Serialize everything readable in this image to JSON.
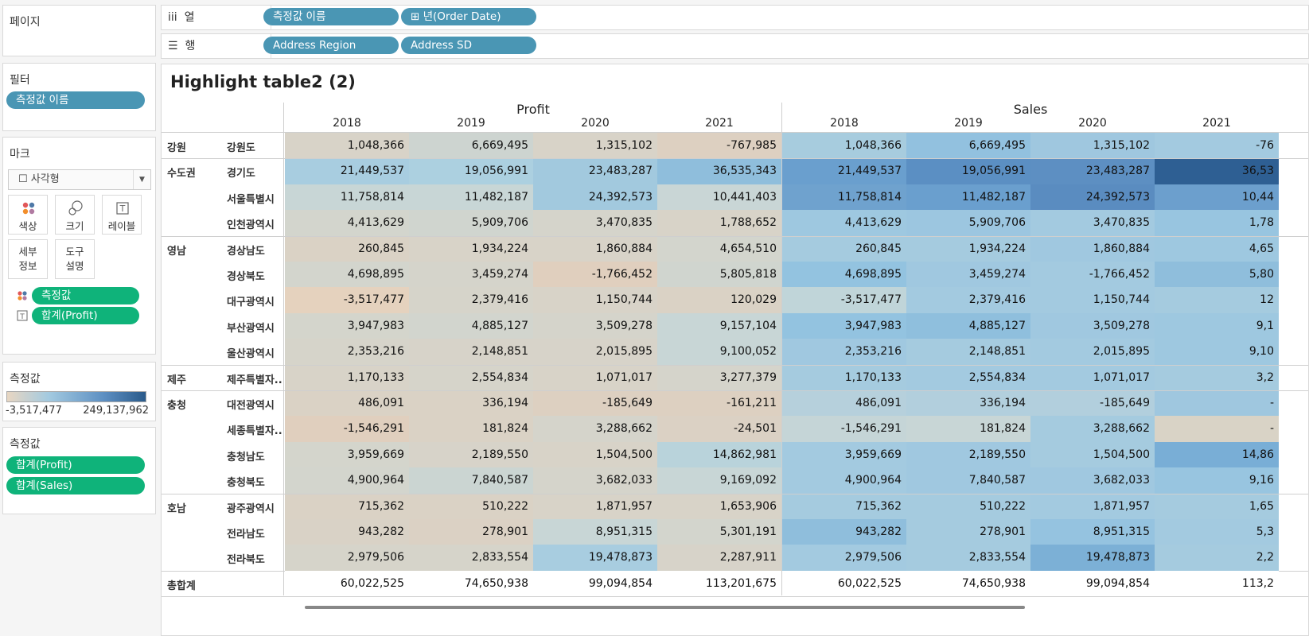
{
  "panels": {
    "pages": "페이지",
    "filters": "필터",
    "marks": "마크",
    "legend_title": "측정값",
    "measures_title": "측정값"
  },
  "filters": {
    "pill": "측정값 이름"
  },
  "marks": {
    "mark_type": "사각형",
    "buttons": {
      "color": "색상",
      "size": "크기",
      "label": "레이블",
      "detail_1": "세부",
      "detail_2": "정보",
      "tooltip_1": "도구",
      "tooltip_2": "설명"
    },
    "pills": {
      "color_pill": "측정값",
      "label_pill": "합계(Profit)"
    }
  },
  "legend": {
    "min": "-3,517,477",
    "max": "249,137,962",
    "color_low": "#e8d6c2",
    "color_high": "#2a5a8a"
  },
  "measures": [
    "합계(Profit)",
    "합계(Sales)"
  ],
  "shelves": {
    "columns": {
      "label": "열",
      "pills": [
        "측정값 이름",
        "년(Order Date)"
      ]
    },
    "rows": {
      "label": "행",
      "pills": [
        "Address Region",
        "Address SD"
      ]
    }
  },
  "view": {
    "title": "Highlight table2 (2)",
    "groups": [
      "Profit",
      "Sales"
    ],
    "years": [
      "2018",
      "2019",
      "2020",
      "2021"
    ],
    "total_label": "총합계",
    "rows": [
      {
        "region": "강원",
        "sd": "강원도",
        "profit": [
          "1,048,366",
          "6,669,495",
          "1,315,102",
          "-767,985"
        ],
        "sales": [
          "1,048,366",
          "6,669,495",
          "1,315,102",
          "-76"
        ]
      },
      {
        "region": "수도권",
        "sd": "경기도",
        "profit": [
          "21,449,537",
          "19,056,991",
          "23,483,287",
          "36,535,343"
        ],
        "sales": [
          "21,449,537",
          "19,056,991",
          "23,483,287",
          "36,53"
        ]
      },
      {
        "region": "",
        "sd": "서울특별시",
        "profit": [
          "11,758,814",
          "11,482,187",
          "24,392,573",
          "10,441,403"
        ],
        "sales": [
          "11,758,814",
          "11,482,187",
          "24,392,573",
          "10,44"
        ]
      },
      {
        "region": "",
        "sd": "인천광역시",
        "profit": [
          "4,413,629",
          "5,909,706",
          "3,470,835",
          "1,788,652"
        ],
        "sales": [
          "4,413,629",
          "5,909,706",
          "3,470,835",
          "1,78"
        ]
      },
      {
        "region": "영남",
        "sd": "경상남도",
        "profit": [
          "260,845",
          "1,934,224",
          "1,860,884",
          "4,654,510"
        ],
        "sales": [
          "260,845",
          "1,934,224",
          "1,860,884",
          "4,65"
        ]
      },
      {
        "region": "",
        "sd": "경상북도",
        "profit": [
          "4,698,895",
          "3,459,274",
          "-1,766,452",
          "5,805,818"
        ],
        "sales": [
          "4,698,895",
          "3,459,274",
          "-1,766,452",
          "5,80"
        ]
      },
      {
        "region": "",
        "sd": "대구광역시",
        "profit": [
          "-3,517,477",
          "2,379,416",
          "1,150,744",
          "120,029"
        ],
        "sales": [
          "-3,517,477",
          "2,379,416",
          "1,150,744",
          "12"
        ]
      },
      {
        "region": "",
        "sd": "부산광역시",
        "profit": [
          "3,947,983",
          "4,885,127",
          "3,509,278",
          "9,157,104"
        ],
        "sales": [
          "3,947,983",
          "4,885,127",
          "3,509,278",
          "9,1"
        ]
      },
      {
        "region": "",
        "sd": "울산광역시",
        "profit": [
          "2,353,216",
          "2,148,851",
          "2,015,895",
          "9,100,052"
        ],
        "sales": [
          "2,353,216",
          "2,148,851",
          "2,015,895",
          "9,10"
        ]
      },
      {
        "region": "제주",
        "sd": "제주특별자..",
        "profit": [
          "1,170,133",
          "2,554,834",
          "1,071,017",
          "3,277,379"
        ],
        "sales": [
          "1,170,133",
          "2,554,834",
          "1,071,017",
          "3,2"
        ]
      },
      {
        "region": "충청",
        "sd": "대전광역시",
        "profit": [
          "486,091",
          "336,194",
          "-185,649",
          "-161,211"
        ],
        "sales": [
          "486,091",
          "336,194",
          "-185,649",
          "-"
        ]
      },
      {
        "region": "",
        "sd": "세종특별자..",
        "profit": [
          "-1,546,291",
          "181,824",
          "3,288,662",
          "-24,501"
        ],
        "sales": [
          "-1,546,291",
          "181,824",
          "3,288,662",
          "-"
        ]
      },
      {
        "region": "",
        "sd": "충청남도",
        "profit": [
          "3,959,669",
          "2,189,550",
          "1,504,500",
          "14,862,981"
        ],
        "sales": [
          "3,959,669",
          "2,189,550",
          "1,504,500",
          "14,86"
        ]
      },
      {
        "region": "",
        "sd": "충청북도",
        "profit": [
          "4,900,964",
          "7,840,587",
          "3,682,033",
          "9,169,092"
        ],
        "sales": [
          "4,900,964",
          "7,840,587",
          "3,682,033",
          "9,16"
        ]
      },
      {
        "region": "호남",
        "sd": "광주광역시",
        "profit": [
          "715,362",
          "510,222",
          "1,871,957",
          "1,653,906"
        ],
        "sales": [
          "715,362",
          "510,222",
          "1,871,957",
          "1,65"
        ]
      },
      {
        "region": "",
        "sd": "전라남도",
        "profit": [
          "943,282",
          "278,901",
          "8,951,315",
          "5,301,191"
        ],
        "sales": [
          "943,282",
          "278,901",
          "8,951,315",
          "5,3"
        ]
      },
      {
        "region": "",
        "sd": "전라북도",
        "profit": [
          "2,979,506",
          "2,833,554",
          "19,478,873",
          "2,287,911"
        ],
        "sales": [
          "2,979,506",
          "2,833,554",
          "19,478,873",
          "2,2"
        ]
      }
    ],
    "totals": {
      "profit": [
        "60,022,525",
        "74,650,938",
        "99,094,854",
        "113,201,675"
      ],
      "sales": [
        "60,022,525",
        "74,650,938",
        "99,094,854",
        "113,2"
      ]
    },
    "profit_colors": [
      [
        "#d8d3c8",
        "#cdd4d0",
        "#d8d3c8",
        "#ddd0c1"
      ],
      [
        "#a8cde0",
        "#acd0e0",
        "#a2c9de",
        "#8fbedc"
      ],
      [
        "#c8d6d6",
        "#c8d6d6",
        "#a2c9de",
        "#c9d6d6"
      ],
      [
        "#d3d5cd",
        "#d0d5cf",
        "#d5d4cb",
        "#d8d3c8"
      ],
      [
        "#dad2c5",
        "#d8d3c8",
        "#d8d3c8",
        "#d3d5cd"
      ],
      [
        "#d3d5cd",
        "#d5d4cb",
        "#e0cfbe",
        "#d0d5cf"
      ],
      [
        "#e5d2be",
        "#d6d4ca",
        "#d8d3c8",
        "#dad2c5"
      ],
      [
        "#d4d5cc",
        "#d2d5ce",
        "#d5d4cb",
        "#c8d6d6"
      ],
      [
        "#d6d4ca",
        "#d7d3c9",
        "#d7d3c9",
        "#c8d6d6"
      ],
      [
        "#d8d3c8",
        "#d6d4ca",
        "#d8d3c8",
        "#d5d4cb"
      ],
      [
        "#dad2c5",
        "#dad2c5",
        "#ddd0c1",
        "#ddd0c1"
      ],
      [
        "#e0cfbe",
        "#dad2c5",
        "#d5d4cb",
        "#dbd1c4"
      ],
      [
        "#d4d5cc",
        "#d7d3c9",
        "#d8d3c8",
        "#b9d3db"
      ],
      [
        "#d3d5cd",
        "#cbd5d2",
        "#d5d4cb",
        "#c8d6d6"
      ],
      [
        "#dad2c5",
        "#dad2c5",
        "#d8d3c8",
        "#d8d3c8"
      ],
      [
        "#d9d2c6",
        "#dbd1c4",
        "#c8d6d6",
        "#d3d5cd"
      ],
      [
        "#d6d4ca",
        "#d6d4ca",
        "#a8cde0",
        "#d7d3c9"
      ]
    ],
    "sales_colors": [
      [
        "#a7ccde",
        "#92c1df",
        "#9fc7df",
        "#a3cae0"
      ],
      [
        "#6a9fce",
        "#5b8fc3",
        "#5d8fc2",
        "#2e5f93"
      ],
      [
        "#6fa2ce",
        "#6a9fce",
        "#5a8cc0",
        "#6c9fcd"
      ],
      [
        "#9ec8e0",
        "#9cc6e0",
        "#a3cae0",
        "#98c5e0"
      ],
      [
        "#a5cbdf",
        "#a5cbdf",
        "#a0c8e0",
        "#9ec8e0"
      ],
      [
        "#93c3e0",
        "#a0c8e0",
        "#a3cae0",
        "#8fbedc"
      ],
      [
        "#c0d5d9",
        "#a3cae0",
        "#a3cae0",
        "#a5cbdf"
      ],
      [
        "#93c3e0",
        "#8fbfdd",
        "#a0c8e0",
        "#9ec8e0"
      ],
      [
        "#a0c8e0",
        "#a5cbdf",
        "#a3cae0",
        "#9ec8e0"
      ],
      [
        "#a5cbdf",
        "#a3cae0",
        "#a3cae0",
        "#a5cbdf"
      ],
      [
        "#b6d0dc",
        "#b2cfdd",
        "#b2cfdd",
        "#9fc7df"
      ],
      [
        "#c5d5d7",
        "#c8d6d6",
        "#a5cbdf",
        "#d9d3c6"
      ],
      [
        "#a3cae0",
        "#a0c8e0",
        "#a5cbdf",
        "#79aed6"
      ],
      [
        "#a3cae0",
        "#a0c8e0",
        "#a0c8e0",
        "#98c5e0"
      ],
      [
        "#a5cbdf",
        "#a5cbdf",
        "#a3cae0",
        "#a5cbdf"
      ],
      [
        "#8fbedc",
        "#a5cbdf",
        "#95c3e0",
        "#a3cae0"
      ],
      [
        "#a3cae0",
        "#a5cbdf",
        "#7cb0d6",
        "#a5cbdf"
      ]
    ]
  }
}
